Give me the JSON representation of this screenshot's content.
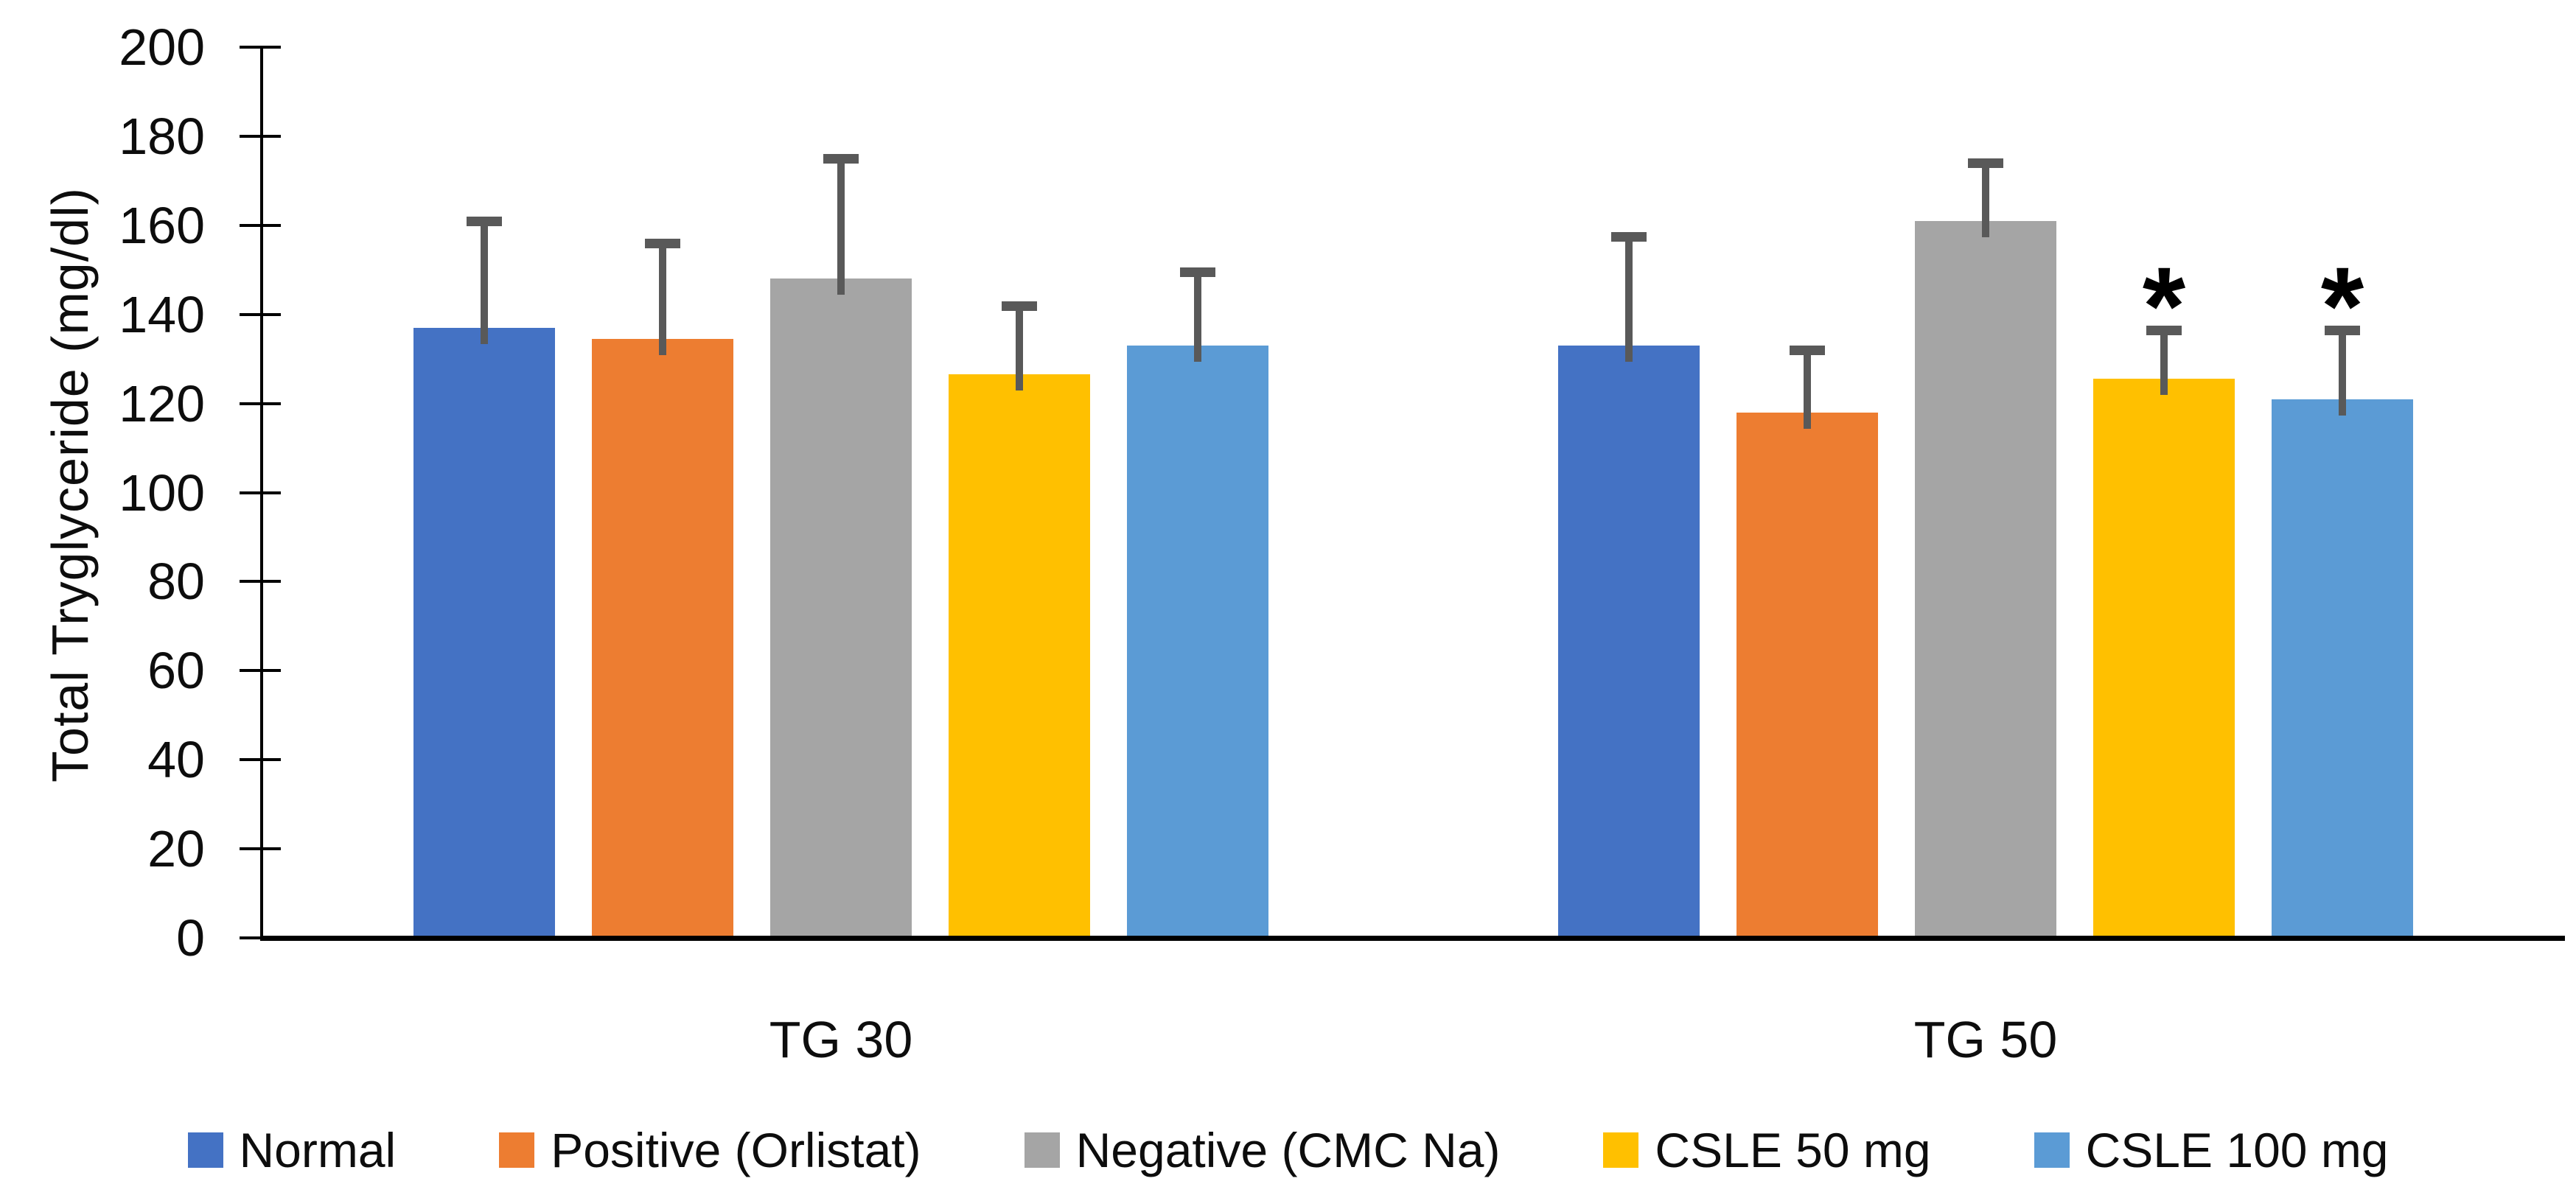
{
  "chart_data": {
    "type": "bar",
    "title": "",
    "xlabel": "",
    "ylabel": "Total Tryglyceride (mg/dl)",
    "categories": [
      "TG 30",
      "TG 50"
    ],
    "series": [
      {
        "name": "Normal",
        "color": "#4472C4",
        "values": [
          137.0,
          133.0
        ],
        "error_plus": [
          24.0,
          24.5
        ]
      },
      {
        "name": "Positive (Orlistat)",
        "color": "#ED7D31",
        "values": [
          134.5,
          118.0
        ],
        "error_plus": [
          21.5,
          14.0
        ]
      },
      {
        "name": "Negative (CMC Na)",
        "color": "#A5A5A5",
        "values": [
          148.0,
          161.0
        ],
        "error_plus": [
          27.0,
          13.0
        ]
      },
      {
        "name": "CSLE 50 mg",
        "color": "#FFC000",
        "values": [
          126.5,
          125.5
        ],
        "error_plus": [
          15.5,
          11.0
        ]
      },
      {
        "name": "CSLE 100 mg",
        "color": "#5B9BD5",
        "values": [
          133.0,
          121.0
        ],
        "error_plus": [
          16.5,
          15.5
        ]
      }
    ],
    "ylim": [
      0,
      200
    ],
    "ytick_step": 20,
    "grid": false,
    "legend_position": "bottom",
    "annotations": [
      {
        "text": "*",
        "category": "TG 50",
        "series": "CSLE 50 mg"
      },
      {
        "text": "*",
        "category": "TG 50",
        "series": "CSLE 100 mg"
      }
    ],
    "error_bar_color": "#595959",
    "axis_color": "#000000",
    "text_color": "#0d0d0d"
  }
}
